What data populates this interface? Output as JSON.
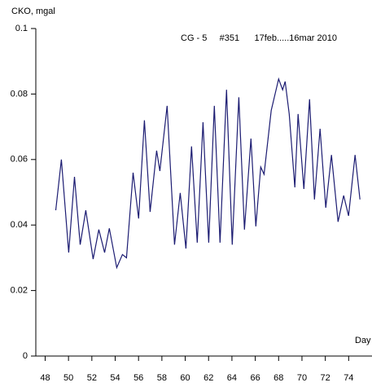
{
  "chart_data": {
    "type": "line",
    "y_label": "CKO, mgal",
    "x_label": "Day",
    "annotation": "CG - 5     #351      17feb.....16mar 2010",
    "x": [
      48.91,
      49.39,
      50.02,
      50.51,
      51.0,
      51.48,
      52.11,
      52.6,
      53.09,
      53.5,
      54.13,
      54.62,
      54.97,
      55.53,
      56.01,
      56.5,
      56.99,
      57.55,
      57.83,
      58.45,
      59.08,
      59.57,
      60.06,
      60.54,
      61.03,
      61.52,
      62.01,
      62.49,
      62.98,
      63.54,
      64.03,
      64.59,
      65.07,
      65.63,
      66.05,
      66.47,
      66.75,
      67.37,
      68.0,
      68.34,
      68.56,
      68.91,
      69.39,
      69.67,
      70.16,
      70.65,
      71.07,
      71.55,
      72.04,
      72.53,
      73.09,
      73.57,
      73.99,
      74.55,
      74.97
    ],
    "series": [
      {
        "name": "CKO",
        "color": "#1c1c72",
        "values": [
          0.0445,
          0.06,
          0.0316,
          0.0547,
          0.034,
          0.0445,
          0.0296,
          0.0386,
          0.0316,
          0.039,
          0.027,
          0.031,
          0.03,
          0.056,
          0.042,
          0.072,
          0.044,
          0.0627,
          0.0565,
          0.0764,
          0.034,
          0.0498,
          0.0328,
          0.064,
          0.0346,
          0.0714,
          0.0346,
          0.0764,
          0.0346,
          0.0813,
          0.034,
          0.079,
          0.0386,
          0.0664,
          0.0396,
          0.0577,
          0.0555,
          0.075,
          0.0846,
          0.0813,
          0.0838,
          0.0739,
          0.0515,
          0.0739,
          0.051,
          0.0784,
          0.0478,
          0.0694,
          0.0453,
          0.0614,
          0.041,
          0.049,
          0.0428,
          0.0614,
          0.0478
        ]
      }
    ],
    "xlim": [
      47.2,
      76.0
    ],
    "ylim": [
      0,
      0.1
    ],
    "xticks": [
      48,
      50,
      52,
      54,
      56,
      58,
      60,
      62,
      64,
      66,
      68,
      70,
      72,
      74
    ],
    "yticks": [
      0,
      0.02,
      0.04,
      0.06,
      0.08,
      0.1
    ]
  }
}
